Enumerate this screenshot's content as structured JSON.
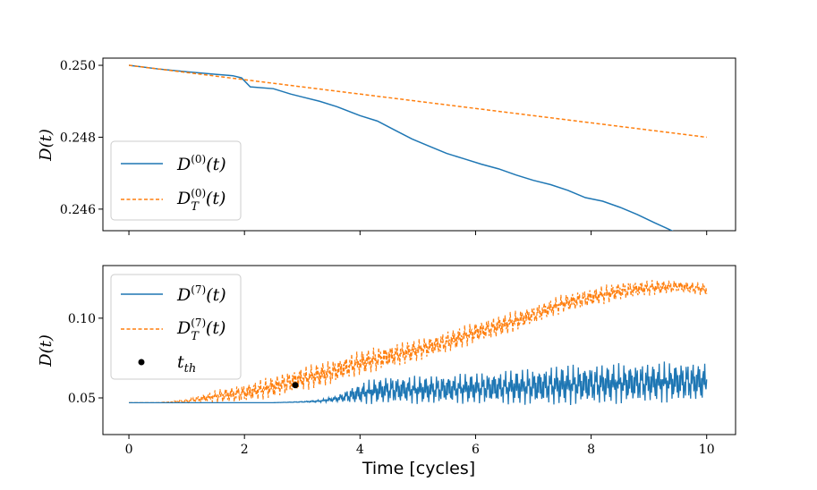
{
  "chart_data": [
    {
      "type": "line",
      "ylabel": "D(t)",
      "xlabel": "",
      "xlim": [
        -0.45,
        10.5
      ],
      "ylim": [
        0.2454,
        0.2502
      ],
      "xticks": [
        0,
        2,
        4,
        6,
        8,
        10
      ],
      "yticks": [
        0.246,
        0.248,
        0.25
      ],
      "ytick_labels": [
        "0.246",
        "0.248",
        "0.250"
      ],
      "legend_position": "lower-left",
      "series": [
        {
          "name": "D^(0)(t)",
          "color": "#1f77b4",
          "style": "solid",
          "x": [
            0,
            0.5,
            1.0,
            1.5,
            1.8,
            1.95,
            2.1,
            2.5,
            2.8,
            3.0,
            3.3,
            3.6,
            4.0,
            4.3,
            4.6,
            4.9,
            5.2,
            5.5,
            5.8,
            6.1,
            6.4,
            6.7,
            7.0,
            7.3,
            7.6,
            7.9,
            8.2,
            8.5,
            8.8,
            9.1,
            9.4,
            9.7,
            10.0
          ],
          "y": [
            0.25,
            0.2499,
            0.24982,
            0.24975,
            0.24971,
            0.24965,
            0.2494,
            0.24935,
            0.2492,
            0.24912,
            0.249,
            0.24885,
            0.2486,
            0.24845,
            0.2482,
            0.24795,
            0.24775,
            0.24755,
            0.2474,
            0.24725,
            0.24712,
            0.24695,
            0.2468,
            0.24668,
            0.24652,
            0.24632,
            0.24622,
            0.24605,
            0.24585,
            0.24562,
            0.2454,
            0.24518,
            0.24495
          ]
        },
        {
          "name": "D_T^(0)(t)",
          "color": "#ff7f0e",
          "style": "dashed",
          "x": [
            0,
            10
          ],
          "y": [
            0.25,
            0.248
          ]
        }
      ]
    },
    {
      "type": "line",
      "ylabel": "D(t)",
      "xlabel": "Time [cycles]",
      "xlim": [
        -0.45,
        10.5
      ],
      "ylim": [
        0.027,
        0.133
      ],
      "xticks": [
        0,
        2,
        4,
        6,
        8,
        10
      ],
      "xtick_labels": [
        "0",
        "2",
        "4",
        "6",
        "8",
        "10"
      ],
      "yticks": [
        0.05,
        0.1
      ],
      "ytick_labels": [
        "0.05",
        "0.10"
      ],
      "legend_position": "upper-left",
      "series": [
        {
          "name": "D^(7)(t)",
          "color": "#1f77b4",
          "style": "solid",
          "x": [
            0,
            0.5,
            1.0,
            1.5,
            2.0,
            2.5,
            3.0,
            3.3,
            3.6,
            3.9,
            4.2,
            4.5,
            5.0,
            5.5,
            6.0,
            6.5,
            7.0,
            7.5,
            8.0,
            8.5,
            9.0,
            9.5,
            10.0
          ],
          "y": [
            0.047,
            0.047,
            0.047,
            0.047,
            0.047,
            0.047,
            0.0475,
            0.048,
            0.0495,
            0.052,
            0.054,
            0.055,
            0.055,
            0.0555,
            0.056,
            0.0565,
            0.057,
            0.058,
            0.0585,
            0.059,
            0.0595,
            0.06,
            0.06
          ],
          "amplitude": [
            0,
            0,
            0,
            0,
            0,
            0,
            0.0003,
            0.0008,
            0.002,
            0.006,
            0.008,
            0.009,
            0.009,
            0.0095,
            0.01,
            0.011,
            0.012,
            0.013,
            0.013,
            0.013,
            0.013,
            0.013,
            0.013
          ]
        },
        {
          "name": "D_T^(7)(t)",
          "color": "#ff7f0e",
          "style": "dashed",
          "x": [
            0,
            0.5,
            1.0,
            1.5,
            2.0,
            2.5,
            3.0,
            3.5,
            4.0,
            4.5,
            5.0,
            5.5,
            6.0,
            6.5,
            7.0,
            7.5,
            8.0,
            8.5,
            9.0,
            9.5,
            10.0
          ],
          "y": [
            0.047,
            0.047,
            0.048,
            0.051,
            0.053,
            0.057,
            0.062,
            0.066,
            0.072,
            0.076,
            0.08,
            0.085,
            0.091,
            0.096,
            0.102,
            0.109,
            0.113,
            0.117,
            0.119,
            0.12,
            0.118
          ],
          "amplitude": [
            0,
            0,
            0.001,
            0.004,
            0.006,
            0.007,
            0.008,
            0.008,
            0.008,
            0.008,
            0.007,
            0.007,
            0.007,
            0.007,
            0.006,
            0.006,
            0.006,
            0.006,
            0.005,
            0.004,
            0.004
          ]
        },
        {
          "name": "t_th",
          "color": "#000000",
          "style": "marker",
          "x": [
            2.88
          ],
          "y": [
            0.058
          ]
        }
      ]
    }
  ]
}
